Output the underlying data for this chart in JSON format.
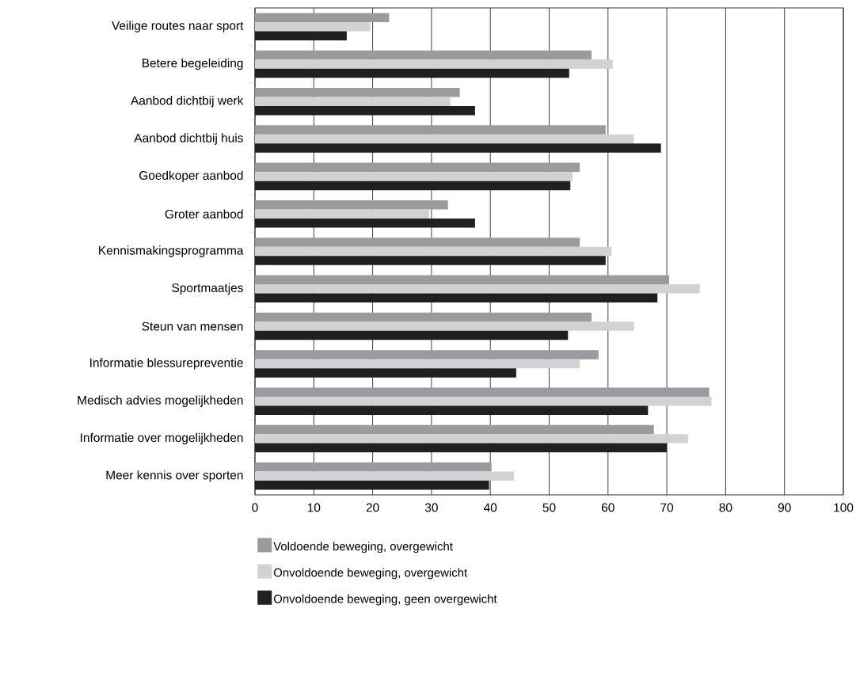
{
  "chart_data": {
    "type": "bar",
    "orientation": "horizontal",
    "categories": [
      "Veilige routes naar sport",
      "Betere begeleiding",
      "Aanbod dichtbij werk",
      "Aanbod dichtbij huis",
      "Goedkoper aanbod",
      "Groter aanbod",
      "Kennismakingsprogramma",
      "Sportmaatjes",
      "Steun van mensen",
      "Informatie blessurepreventie",
      "Medisch advies mogelijkheden",
      "Informatie over mogelijkheden",
      "Meer kennis over sporten"
    ],
    "series": [
      {
        "name": "Voldoende beweging, overgewicht",
        "color": "#9a9b9f",
        "values": [
          22.8,
          57.2,
          34.8,
          59.6,
          55.2,
          32.8,
          55.2,
          70.4,
          57.2,
          58.4,
          77.2,
          67.8,
          40.2
        ]
      },
      {
        "name": "Onvoldoende beweging, overgewicht",
        "color": "#d1d2d4",
        "values": [
          19.6,
          60.8,
          33.2,
          64.4,
          54.0,
          29.6,
          60.6,
          75.6,
          64.4,
          55.2,
          77.6,
          73.6,
          44.0
        ]
      },
      {
        "name": "Onvoldoende beweging, geen overgewicht",
        "color": "#231f20",
        "values": [
          15.6,
          53.4,
          37.4,
          69.0,
          53.6,
          37.4,
          59.6,
          68.4,
          53.2,
          44.4,
          66.8,
          70.0,
          39.8
        ]
      }
    ],
    "xlim": [
      0,
      100
    ],
    "xticks": [
      0,
      10,
      20,
      30,
      40,
      50,
      60,
      70,
      80,
      90,
      100
    ],
    "grid": "x",
    "legend": "bottom"
  }
}
